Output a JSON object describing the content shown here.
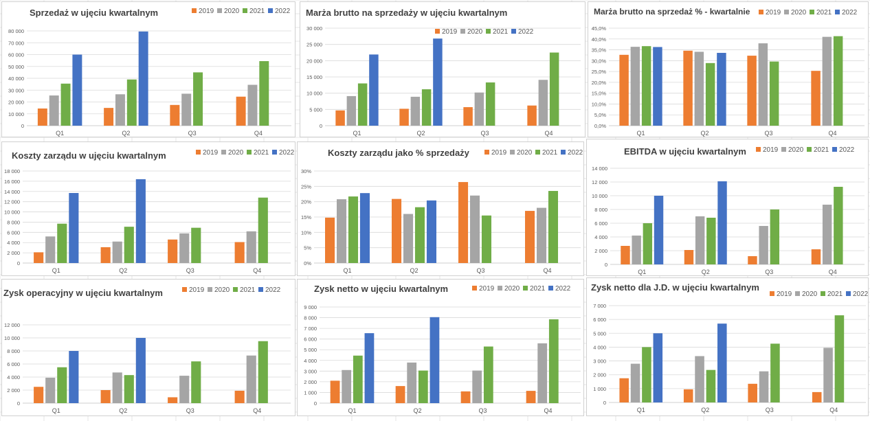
{
  "colors": {
    "2019": "#ED7D31",
    "2020": "#A5A5A5",
    "2021": "#70AD47",
    "2022": "#4472C4",
    "grid": "#D9D9D9",
    "axis": "#BFBFBF"
  },
  "chart_data": [
    {
      "type": "bar",
      "title": "Sprzedaż w ujęciu kwartalnym",
      "categories": [
        "Q1",
        "Q2",
        "Q3",
        "Q4"
      ],
      "yticks": [
        "0",
        "10 000",
        "20 000",
        "30 000",
        "40 000",
        "50 000",
        "60 000",
        "70 000",
        "80 000"
      ],
      "ylim": [
        0,
        80000
      ],
      "series": [
        {
          "name": "2019",
          "values": [
            14500,
            15000,
            17500,
            24500
          ]
        },
        {
          "name": "2020",
          "values": [
            25500,
            26500,
            27000,
            34500
          ]
        },
        {
          "name": "2021",
          "values": [
            35500,
            39000,
            45000,
            54500
          ]
        },
        {
          "name": "2022",
          "values": [
            60000,
            79500,
            null,
            null
          ]
        }
      ],
      "legend": "top-right"
    },
    {
      "type": "bar",
      "title": "Marża brutto na sprzedaży w ujęciu kwartalnym",
      "categories": [
        "Q1",
        "Q2",
        "Q3",
        "Q4"
      ],
      "yticks": [
        "0",
        "5 000",
        "10 000",
        "15 000",
        "20 000",
        "25 000",
        "30 000"
      ],
      "ylim": [
        0,
        30000
      ],
      "series": [
        {
          "name": "2019",
          "values": [
            4700,
            5200,
            5700,
            6200
          ]
        },
        {
          "name": "2020",
          "values": [
            9100,
            8900,
            10200,
            14100
          ]
        },
        {
          "name": "2021",
          "values": [
            13000,
            11200,
            13300,
            22500
          ]
        },
        {
          "name": "2022",
          "values": [
            21900,
            26800,
            null,
            null
          ]
        }
      ],
      "legend": "top-right"
    },
    {
      "type": "bar",
      "title": "Marża brutto na sprzedaż % - kwartalnie",
      "categories": [
        "Q1",
        "Q2",
        "Q3",
        "Q4"
      ],
      "yticks": [
        "0,0%",
        "5,0%",
        "10,0%",
        "15,0%",
        "20,0%",
        "25,0%",
        "30,0%",
        "35,0%",
        "40,0%",
        "45,0%"
      ],
      "ylim": [
        0,
        45
      ],
      "series": [
        {
          "name": "2019",
          "values": [
            32.7,
            34.6,
            32.3,
            25.3
          ]
        },
        {
          "name": "2020",
          "values": [
            36.4,
            34.1,
            38.0,
            41.0
          ]
        },
        {
          "name": "2021",
          "values": [
            36.7,
            28.9,
            29.6,
            41.3
          ]
        },
        {
          "name": "2022",
          "values": [
            36.3,
            33.6,
            null,
            null
          ]
        }
      ],
      "legend": "top-right"
    },
    {
      "type": "bar",
      "title": "Koszty zarządu w ujęciu kwartalnym",
      "categories": [
        "Q1",
        "Q2",
        "Q3",
        "Q4"
      ],
      "yticks": [
        "0",
        "2 000",
        "4 000",
        "6 000",
        "8 000",
        "10 000",
        "12 000",
        "14 000",
        "16 000",
        "18 000"
      ],
      "ylim": [
        0,
        18000
      ],
      "series": [
        {
          "name": "2019",
          "values": [
            2100,
            3100,
            4600,
            4100
          ]
        },
        {
          "name": "2020",
          "values": [
            5200,
            4200,
            5800,
            6200
          ]
        },
        {
          "name": "2021",
          "values": [
            7700,
            7100,
            6900,
            12800
          ]
        },
        {
          "name": "2022",
          "values": [
            13700,
            16400,
            null,
            null
          ]
        }
      ],
      "legend": "top-right"
    },
    {
      "type": "bar",
      "title": "Koszty zarządu jako % sprzedaży",
      "categories": [
        "Q1",
        "Q2",
        "Q3",
        "Q4"
      ],
      "yticks": [
        "0%",
        "5%",
        "10%",
        "15%",
        "20%",
        "25%",
        "30%"
      ],
      "ylim": [
        0,
        30
      ],
      "series": [
        {
          "name": "2019",
          "values": [
            14.8,
            20.9,
            26.4,
            17.0
          ]
        },
        {
          "name": "2020",
          "values": [
            20.8,
            16.0,
            22.0,
            18.0
          ]
        },
        {
          "name": "2021",
          "values": [
            21.7,
            18.2,
            15.5,
            23.5
          ]
        },
        {
          "name": "2022",
          "values": [
            22.8,
            20.4,
            null,
            null
          ]
        }
      ],
      "legend": "top-right"
    },
    {
      "type": "bar",
      "title": "EBITDA w ujęciu kwartalnym",
      "categories": [
        "Q1",
        "Q2",
        "Q3",
        "Q4"
      ],
      "yticks": [
        "0",
        "2 000",
        "4 000",
        "6 000",
        "8 000",
        "10 000",
        "12 000",
        "14 000"
      ],
      "ylim": [
        0,
        14000
      ],
      "series": [
        {
          "name": "2019",
          "values": [
            2700,
            2100,
            1200,
            2200
          ]
        },
        {
          "name": "2020",
          "values": [
            4200,
            7000,
            5600,
            8700
          ]
        },
        {
          "name": "2021",
          "values": [
            6000,
            6800,
            8000,
            11300
          ]
        },
        {
          "name": "2022",
          "values": [
            10000,
            12100,
            null,
            null
          ]
        }
      ],
      "legend": "top-right"
    },
    {
      "type": "bar",
      "title": "Zysk operacyjny w ujęciu kwartalnym",
      "categories": [
        "Q1",
        "Q2",
        "Q3",
        "Q4"
      ],
      "yticks": [
        "0",
        "2 000",
        "4 000",
        "6 000",
        "8 000",
        "10 000",
        "12 000"
      ],
      "ylim": [
        0,
        12000
      ],
      "series": [
        {
          "name": "2019",
          "values": [
            2500,
            2000,
            900,
            1900
          ]
        },
        {
          "name": "2020",
          "values": [
            3900,
            4700,
            4200,
            7300
          ]
        },
        {
          "name": "2021",
          "values": [
            5500,
            4300,
            6400,
            9500
          ]
        },
        {
          "name": "2022",
          "values": [
            8000,
            10000,
            null,
            null
          ]
        }
      ],
      "legend": "top-right"
    },
    {
      "type": "bar",
      "title": "Zysk netto w ujęciu kwartalnym",
      "categories": [
        "Q1",
        "Q2",
        "Q3",
        "Q4"
      ],
      "yticks": [
        "0",
        "1 000",
        "2 000",
        "3 000",
        "4 000",
        "5 000",
        "6 000",
        "7 000",
        "8 000",
        "9 000"
      ],
      "ylim": [
        0,
        9000
      ],
      "series": [
        {
          "name": "2019",
          "values": [
            2100,
            1600,
            1100,
            1150
          ]
        },
        {
          "name": "2020",
          "values": [
            3100,
            3800,
            3050,
            5600
          ]
        },
        {
          "name": "2021",
          "values": [
            4450,
            3050,
            5300,
            7850
          ]
        },
        {
          "name": "2022",
          "values": [
            6550,
            8050,
            null,
            null
          ]
        }
      ],
      "legend": "top-right"
    },
    {
      "type": "bar",
      "title": "Zysk netto dla J.D. w ujęciu kwartalnym",
      "categories": [
        "Q1",
        "Q2",
        "Q3",
        "Q4"
      ],
      "yticks": [
        "0",
        "1 000",
        "2 000",
        "3 000",
        "4 000",
        "5 000",
        "6 000",
        "7 000"
      ],
      "ylim": [
        0,
        7000
      ],
      "series": [
        {
          "name": "2019",
          "values": [
            1750,
            950,
            1350,
            750
          ]
        },
        {
          "name": "2020",
          "values": [
            2800,
            3350,
            2250,
            3950
          ]
        },
        {
          "name": "2021",
          "values": [
            4000,
            2350,
            4250,
            6300
          ]
        },
        {
          "name": "2022",
          "values": [
            5000,
            5700,
            null,
            null
          ]
        }
      ],
      "legend": "top-right"
    }
  ]
}
